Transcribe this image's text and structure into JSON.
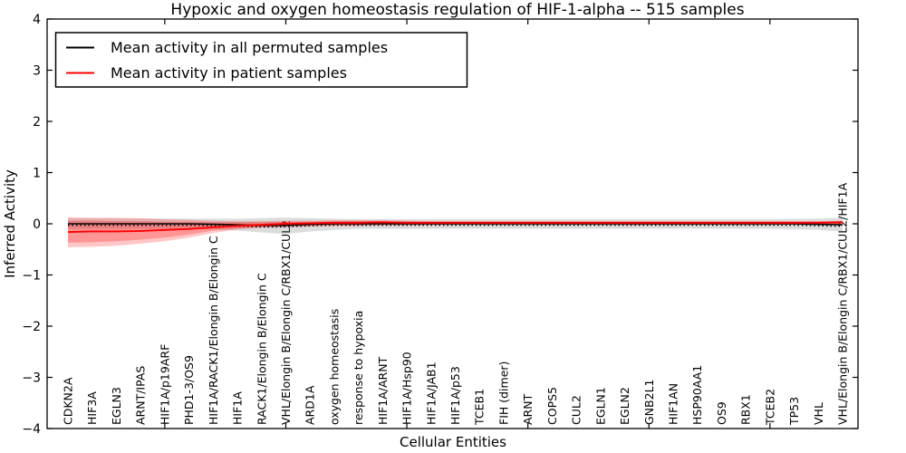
{
  "title": "Hypoxic and oxygen homeostasis regulation of HIF-1-alpha -- 515 samples",
  "chart_data": {
    "type": "line",
    "title": "Hypoxic and oxygen homeostasis regulation of HIF-1-alpha -- 515 samples",
    "xlabel": "Cellular Entities",
    "ylabel": "Inferred Activity",
    "ylim": [
      -4,
      4
    ],
    "yticks": [
      -4,
      -3,
      -2,
      -1,
      0,
      1,
      2,
      3,
      4
    ],
    "grid": false,
    "legend_position": "upper left",
    "x_major_tick_categories": [
      5,
      10,
      15,
      20,
      25,
      30
    ],
    "categories": [
      "CDKN2A",
      "HIF3A",
      "EGLN3",
      "ARNT/IPAS",
      "HIF1A/p19ARF",
      "PHD1-3/OS9",
      "HIF1A/RACK1/Elongin B/Elongin C",
      "HIF1A",
      "RACK1/Elongin B/Elongin C",
      "VHL/Elongin B/Elongin C/RBX1/CUL2",
      "ARD1A",
      "oxygen homeostasis",
      "response to hypoxia",
      "HIF1A/ARNT",
      "HIF1A/Hsp90",
      "HIF1A/JAB1",
      "HIF1A/p53",
      "TCEB1",
      "FIH (dimer)",
      "ARNT",
      "COPS5",
      "CUL2",
      "EGLN1",
      "EGLN2",
      "GNB2L1",
      "HIF1AN",
      "HSP90AA1",
      "OS9",
      "RBX1",
      "TCEB2",
      "TP53",
      "VHL",
      "VHL/Elongin B/Elongin C/RBX1/CUL2/HIF1A"
    ],
    "legend": {
      "entries": [
        {
          "label": "Mean activity in all permuted samples",
          "color": "#000000",
          "style": "solid"
        },
        {
          "label": "Mean activity in patient samples",
          "color": "#ff0000",
          "style": "solid"
        }
      ]
    },
    "series": [
      {
        "id": "permuted-mean",
        "name": "Mean activity in all permuted samples",
        "color": "#000000",
        "style": "solid",
        "width": 1.6,
        "values": [
          0,
          0,
          0,
          0,
          0,
          0,
          -0.01,
          -0.02,
          -0.03,
          -0.03,
          -0.01,
          0,
          0,
          0,
          0,
          0,
          0,
          0,
          0,
          0,
          0,
          0,
          0,
          0,
          0,
          0,
          0,
          0,
          0,
          0,
          0,
          -0.01,
          -0.02
        ]
      },
      {
        "id": "dotted-reference-line",
        "name": "dotted reference line",
        "color": "#000000",
        "style": "dotted",
        "width": 1.4,
        "values": [
          -0.03,
          -0.03,
          -0.03,
          -0.03,
          -0.03,
          -0.03,
          -0.04,
          -0.05,
          -0.06,
          -0.06,
          -0.04,
          -0.03,
          -0.03,
          -0.03,
          -0.03,
          -0.03,
          -0.03,
          -0.03,
          -0.03,
          -0.03,
          -0.03,
          -0.03,
          -0.03,
          -0.03,
          -0.03,
          -0.03,
          -0.03,
          -0.03,
          -0.03,
          -0.03,
          -0.03,
          -0.04,
          -0.05
        ]
      },
      {
        "id": "patient-mean",
        "name": "Mean activity in patient samples",
        "color": "#ff0000",
        "style": "solid",
        "width": 1.9,
        "values": [
          -0.16,
          -0.15,
          -0.15,
          -0.14,
          -0.12,
          -0.1,
          -0.07,
          -0.04,
          -0.02,
          0,
          0.01,
          0.02,
          0.02,
          0.03,
          0.02,
          0.02,
          0.02,
          0.02,
          0.02,
          0.02,
          0.02,
          0.02,
          0.02,
          0.02,
          0.02,
          0.02,
          0.02,
          0.02,
          0.02,
          0.02,
          0.02,
          0.02,
          0.03
        ]
      }
    ],
    "bands": [
      {
        "name": "permuted-range",
        "color": "#808080",
        "opacity": 0.28,
        "upper": [
          0.1,
          0.1,
          0.1,
          0.1,
          0.1,
          0.1,
          0.1,
          0.1,
          0.11,
          0.12,
          0.11,
          0.1,
          0.09,
          0.09,
          0.09,
          0.09,
          0.09,
          0.09,
          0.09,
          0.09,
          0.09,
          0.09,
          0.09,
          0.09,
          0.09,
          0.09,
          0.09,
          0.09,
          0.09,
          0.09,
          0.1,
          0.1,
          0.12
        ],
        "lower": [
          -0.1,
          -0.1,
          -0.1,
          -0.1,
          -0.1,
          -0.1,
          -0.11,
          -0.13,
          -0.17,
          -0.2,
          -0.15,
          -0.12,
          -0.1,
          -0.1,
          -0.1,
          -0.1,
          -0.1,
          -0.1,
          -0.1,
          -0.1,
          -0.1,
          -0.1,
          -0.1,
          -0.1,
          -0.1,
          -0.1,
          -0.1,
          -0.1,
          -0.1,
          -0.1,
          -0.11,
          -0.12,
          -0.15
        ]
      },
      {
        "name": "patient-range-outer",
        "color": "#ff0000",
        "opacity": 0.22,
        "upper": [
          0.13,
          0.12,
          0.12,
          0.11,
          0.09,
          0.08,
          0.06,
          0.05,
          0.05,
          0.06,
          0.06,
          0.07,
          0.07,
          0.07,
          0.06,
          0.05,
          0.05,
          0.05,
          0.05,
          0.05,
          0.05,
          0.05,
          0.05,
          0.05,
          0.05,
          0.05,
          0.05,
          0.05,
          0.05,
          0.05,
          0.05,
          0.05,
          0.06
        ],
        "lower": [
          -0.46,
          -0.45,
          -0.43,
          -0.39,
          -0.34,
          -0.27,
          -0.18,
          -0.11,
          -0.08,
          -0.07,
          -0.05,
          -0.04,
          -0.04,
          -0.03,
          -0.03,
          -0.02,
          -0.02,
          -0.02,
          -0.02,
          -0.02,
          -0.02,
          -0.02,
          -0.02,
          -0.02,
          -0.02,
          -0.02,
          -0.02,
          -0.02,
          -0.02,
          -0.02,
          -0.02,
          -0.02,
          -0.01
        ]
      },
      {
        "name": "patient-range-inner",
        "color": "#ff0000",
        "opacity": 0.25,
        "upper": [
          0.06,
          0.06,
          0.05,
          0.05,
          0.04,
          0.04,
          0.03,
          0.03,
          0.03,
          0.04,
          0.04,
          0.05,
          0.05,
          0.05,
          0.04,
          0.04,
          0.04,
          0.04,
          0.04,
          0.04,
          0.04,
          0.04,
          0.04,
          0.04,
          0.04,
          0.04,
          0.04,
          0.04,
          0.04,
          0.04,
          0.04,
          0.04,
          0.05
        ],
        "lower": [
          -0.37,
          -0.36,
          -0.34,
          -0.31,
          -0.27,
          -0.21,
          -0.13,
          -0.09,
          -0.06,
          -0.05,
          -0.04,
          -0.03,
          -0.03,
          -0.02,
          -0.02,
          -0.02,
          -0.02,
          -0.02,
          -0.02,
          -0.02,
          -0.02,
          -0.02,
          -0.02,
          -0.02,
          -0.02,
          -0.02,
          -0.02,
          -0.02,
          -0.02,
          -0.02,
          -0.02,
          -0.02,
          -0.01
        ]
      }
    ]
  }
}
